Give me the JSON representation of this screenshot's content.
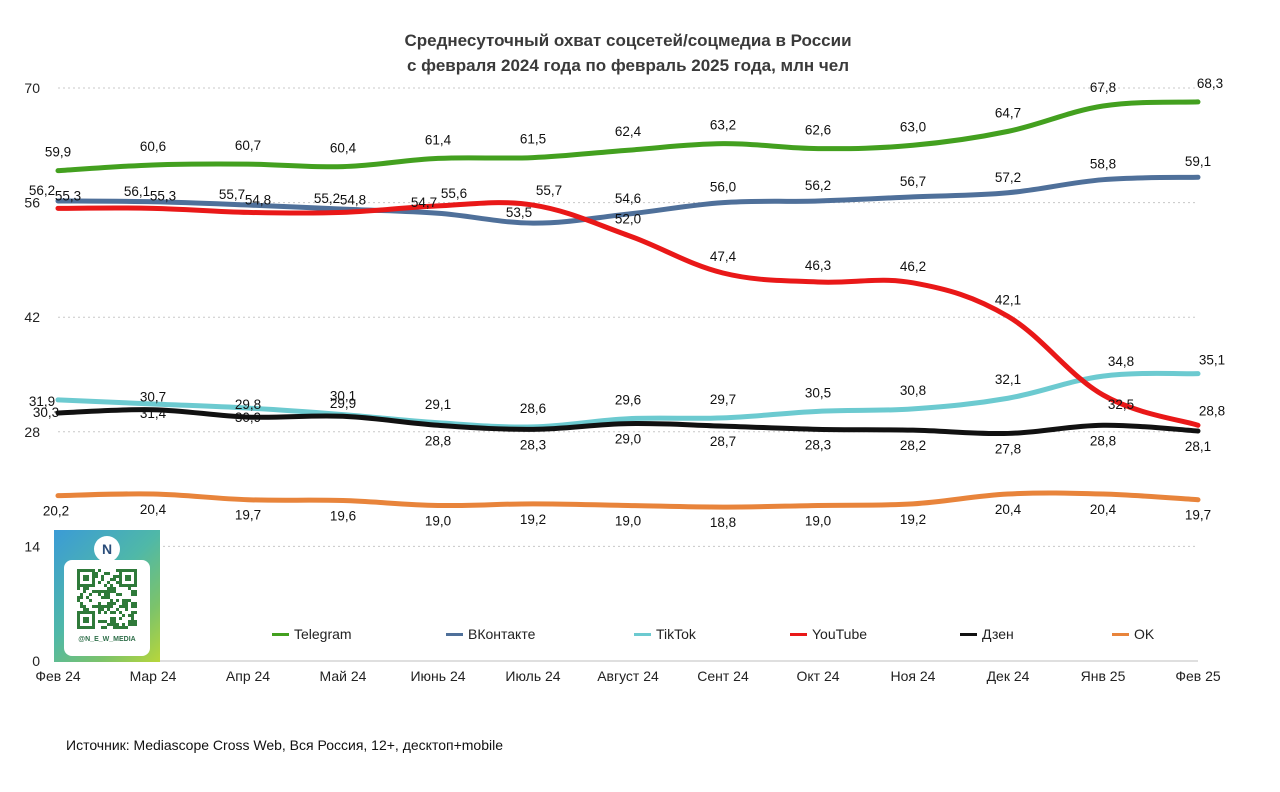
{
  "chart_data": {
    "type": "line",
    "title": "Среднесуточный охват соцсетей/соцмедиа в России",
    "subtitle": "с февраля 2024 года по февраль 2025 года, млн чел",
    "categories": [
      "Фев 24",
      "Мар 24",
      "Апр 24",
      "Май 24",
      "Июнь 24",
      "Июль 24",
      "Август 24",
      "Сент 24",
      "Окт 24",
      "Ноя 24",
      "Дек 24",
      "Янв 25",
      "Фев 25"
    ],
    "y_ticks": [
      0,
      14,
      28,
      42,
      56,
      70
    ],
    "ylim": [
      0,
      70
    ],
    "grid": "horizontal-dashed",
    "legend_position": "bottom",
    "series": [
      {
        "name": "Telegram",
        "color": "#43a01f",
        "values": [
          59.9,
          60.6,
          60.7,
          60.4,
          61.4,
          61.5,
          62.4,
          63.2,
          62.6,
          63.0,
          64.7,
          67.8,
          68.3
        ],
        "labels": [
          "59,9",
          "60,6",
          "60,7",
          "60,4",
          "61,4",
          "61,5",
          "62,4",
          "63,2",
          "62,6",
          "63,0",
          "64,7",
          "67,8",
          "68,3"
        ]
      },
      {
        "name": "ВКонтакте",
        "color": "#4f709a",
        "values": [
          56.2,
          56.1,
          55.7,
          55.2,
          54.7,
          53.5,
          54.6,
          56.0,
          56.2,
          56.7,
          57.2,
          58.8,
          59.1
        ],
        "labels": [
          "56,2",
          "56,1",
          "55,7",
          "55,2",
          "54,7",
          "53,5",
          "54,6",
          "56,0",
          "56,2",
          "56,7",
          "57,2",
          "58,8",
          "59,1"
        ]
      },
      {
        "name": "TikTok",
        "color": "#6ccad0",
        "values": [
          31.9,
          31.4,
          30.9,
          30.1,
          29.1,
          28.6,
          29.6,
          29.7,
          30.5,
          30.8,
          32.1,
          34.8,
          35.1
        ],
        "labels": [
          "31,9",
          "31,4",
          "30,9",
          "30,1",
          "29,1",
          "28,6",
          "29,6",
          "29,7",
          "30,5",
          "30,8",
          "32,1",
          "34,8",
          "35,1"
        ]
      },
      {
        "name": "YouTube",
        "color": "#e91818",
        "values": [
          55.3,
          55.3,
          54.8,
          54.8,
          55.6,
          55.7,
          52.0,
          47.4,
          46.3,
          46.2,
          42.1,
          32.5,
          28.8
        ],
        "labels": [
          "55,3",
          "55,3",
          "54,8",
          "54,8",
          "55,6",
          "55,7",
          "52,0",
          "47,4",
          "46,3",
          "46,2",
          "42,1",
          "32,5",
          "28,8"
        ]
      },
      {
        "name": "Дзен",
        "color": "#111111",
        "values": [
          30.3,
          30.7,
          29.8,
          29.9,
          28.8,
          28.3,
          29.0,
          28.7,
          28.3,
          28.2,
          27.8,
          28.8,
          28.1
        ],
        "labels": [
          "30,3",
          "30,7",
          "29,8",
          "29,9",
          "28,8",
          "28,3",
          "29,0",
          "28,7",
          "28,3",
          "28,2",
          "27,8",
          "28,8",
          "28,1"
        ]
      },
      {
        "name": "OK",
        "color": "#e8843b",
        "values": [
          20.2,
          20.4,
          19.7,
          19.6,
          19.0,
          19.2,
          19.0,
          18.8,
          19.0,
          19.2,
          20.4,
          20.4,
          19.7
        ],
        "labels": [
          "20,2",
          "20,4",
          "19,7",
          "19,6",
          "19,0",
          "19,2",
          "19,0",
          "18,8",
          "19,0",
          "19,2",
          "20,4",
          "20,4",
          "19,7"
        ]
      }
    ]
  },
  "source_text": "Источник: Mediascope Cross Web, Вся Россия, 12+, десктоп+mobile",
  "badge": {
    "logo_letter": "N",
    "handle": "@N_E_W_MEDIA",
    "gradient_colors": [
      "#3b9bd6",
      "#4fb8a8",
      "#7cc36a",
      "#b8d63a"
    ]
  }
}
